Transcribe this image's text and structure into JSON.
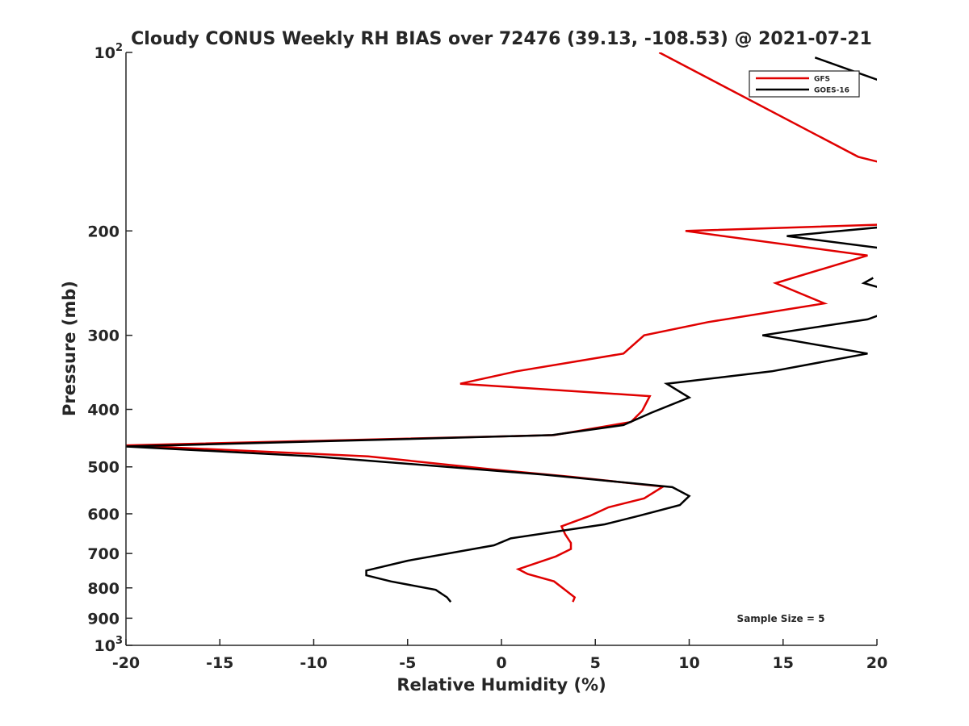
{
  "chart_data": {
    "type": "line",
    "title": "Cloudy CONUS Weekly RH BIAS over 72476 (39.13, -108.53) @ 2021-07-21",
    "xlabel": "Relative Humidity (%)",
    "ylabel": "Pressure (mb)",
    "xlim": [
      -20,
      20
    ],
    "ylim": [
      100,
      1000
    ],
    "y_scale": "log",
    "y_reversed": true,
    "grid": false,
    "legend_position": "top-right",
    "x_ticks": [
      {
        "value": -20,
        "label": "-20"
      },
      {
        "value": -15,
        "label": "-15"
      },
      {
        "value": -10,
        "label": "-10"
      },
      {
        "value": -5,
        "label": "-5"
      },
      {
        "value": 0,
        "label": "0"
      },
      {
        "value": 5,
        "label": "5"
      },
      {
        "value": 10,
        "label": "10"
      },
      {
        "value": 15,
        "label": "15"
      },
      {
        "value": 20,
        "label": "20"
      }
    ],
    "y_ticks": [
      {
        "value": 100,
        "label": "10",
        "sup": "2"
      },
      {
        "value": 200,
        "label": "200"
      },
      {
        "value": 300,
        "label": "300"
      },
      {
        "value": 400,
        "label": "400"
      },
      {
        "value": 500,
        "label": "500"
      },
      {
        "value": 600,
        "label": "600"
      },
      {
        "value": 700,
        "label": "700"
      },
      {
        "value": 800,
        "label": "800"
      },
      {
        "value": 900,
        "label": "900"
      },
      {
        "value": 1000,
        "label": "10",
        "sup": "3"
      }
    ],
    "annotation": "Sample Size = 5",
    "series": [
      {
        "name": "GFS",
        "color": "#e00000",
        "points": [
          [
            8.4,
            100
          ],
          [
            19.0,
            150
          ],
          [
            20.8,
            155
          ],
          [
            null,
            null
          ],
          [
            20.6,
            195
          ],
          [
            9.8,
            200
          ],
          [
            19.5,
            220
          ],
          [
            14.6,
            245
          ],
          [
            17.2,
            265
          ],
          [
            11.0,
            285
          ],
          [
            7.6,
            300
          ],
          [
            6.5,
            322
          ],
          [
            0.8,
            345
          ],
          [
            -2.2,
            362
          ],
          [
            7.9,
            380
          ],
          [
            7.5,
            402
          ],
          [
            6.9,
            420
          ],
          [
            2.8,
            442
          ],
          [
            -20.0,
            460
          ],
          [
            -7.1,
            480
          ],
          [
            -0.5,
            505
          ],
          [
            3.8,
            520
          ],
          [
            8.6,
            540
          ],
          [
            7.6,
            565
          ],
          [
            5.7,
            585
          ],
          [
            4.7,
            605
          ],
          [
            3.2,
            630
          ],
          [
            3.4,
            650
          ],
          [
            3.7,
            672
          ],
          [
            3.7,
            688
          ],
          [
            2.9,
            708
          ],
          [
            0.9,
            744
          ],
          [
            1.4,
            758
          ],
          [
            2.8,
            780
          ],
          [
            3.3,
            802
          ],
          [
            3.9,
            830
          ],
          [
            3.8,
            845
          ]
        ]
      },
      {
        "name": "GOES-16",
        "color": "#000000",
        "points": [
          [
            16.7,
            102
          ],
          [
            20.3,
            112
          ],
          [
            null,
            null
          ],
          [
            20.3,
            197
          ],
          [
            15.2,
            204
          ],
          [
            20.3,
            214
          ],
          [
            null,
            null
          ],
          [
            19.8,
            240
          ],
          [
            19.3,
            245
          ],
          [
            20.3,
            250
          ],
          [
            null,
            null
          ],
          [
            20.3,
            276
          ],
          [
            19.5,
            282
          ],
          [
            13.9,
            300
          ],
          [
            19.5,
            322
          ],
          [
            14.4,
            345
          ],
          [
            8.8,
            362
          ],
          [
            10.0,
            382
          ],
          [
            8.0,
            405
          ],
          [
            6.5,
            425
          ],
          [
            2.7,
            442
          ],
          [
            -20.0,
            462
          ],
          [
            -10.0,
            480
          ],
          [
            2.2,
            515
          ],
          [
            9.1,
            541
          ],
          [
            10.0,
            560
          ],
          [
            9.5,
            580
          ],
          [
            7.3,
            605
          ],
          [
            5.5,
            625
          ],
          [
            0.5,
            660
          ],
          [
            -0.4,
            678
          ],
          [
            -5.0,
            720
          ],
          [
            -7.2,
            748
          ],
          [
            -7.2,
            762
          ],
          [
            -5.9,
            780
          ],
          [
            -3.5,
            806
          ],
          [
            -2.9,
            830
          ],
          [
            -2.7,
            845
          ]
        ]
      }
    ]
  }
}
